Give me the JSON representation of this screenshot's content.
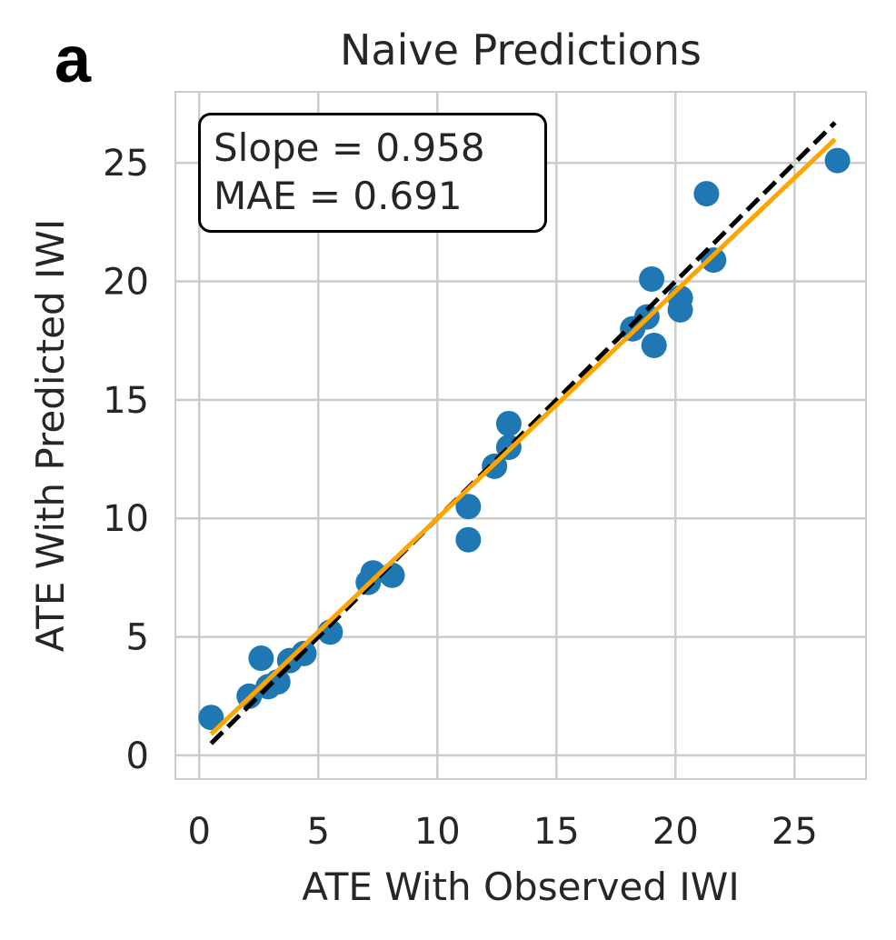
{
  "panel_label": "a",
  "chart_data": {
    "type": "scatter",
    "title": "Naive Predictions",
    "xlabel": "ATE With Observed IWI",
    "ylabel": "ATE With Predicted IWI",
    "xlim": [
      -1,
      28
    ],
    "ylim": [
      -1,
      28
    ],
    "xticks": [
      0,
      5,
      10,
      15,
      20,
      25
    ],
    "yticks": [
      0,
      5,
      10,
      15,
      20,
      25
    ],
    "grid": true,
    "annotation": {
      "slope_text": "Slope = 0.958",
      "mae_text": "MAE = 0.691"
    },
    "points": [
      [
        0.5,
        1.6
      ],
      [
        2.1,
        2.5
      ],
      [
        2.6,
        4.1
      ],
      [
        2.9,
        2.9
      ],
      [
        3.3,
        3.1
      ],
      [
        3.8,
        4.0
      ],
      [
        4.4,
        4.3
      ],
      [
        5.5,
        5.2
      ],
      [
        7.1,
        7.3
      ],
      [
        7.3,
        7.7
      ],
      [
        8.1,
        7.6
      ],
      [
        11.3,
        10.5
      ],
      [
        11.3,
        9.1
      ],
      [
        12.4,
        12.2
      ],
      [
        13.0,
        13.0
      ],
      [
        13.0,
        14.0
      ],
      [
        18.2,
        18.0
      ],
      [
        18.8,
        18.5
      ],
      [
        19.0,
        20.1
      ],
      [
        19.1,
        17.3
      ],
      [
        20.2,
        19.3
      ],
      [
        20.2,
        18.8
      ],
      [
        21.3,
        23.7
      ],
      [
        21.6,
        20.9
      ],
      [
        26.8,
        25.1
      ]
    ],
    "series": [
      {
        "name": "identity",
        "style": "dashed",
        "color": "#000000",
        "x": [
          0.5,
          26.7
        ],
        "y": [
          0.5,
          26.7
        ]
      },
      {
        "name": "fit",
        "style": "solid",
        "color": "#FFA500",
        "x": [
          0.5,
          26.7
        ],
        "y": [
          0.9,
          26.0
        ]
      }
    ],
    "point_color": "#1f77b4"
  }
}
